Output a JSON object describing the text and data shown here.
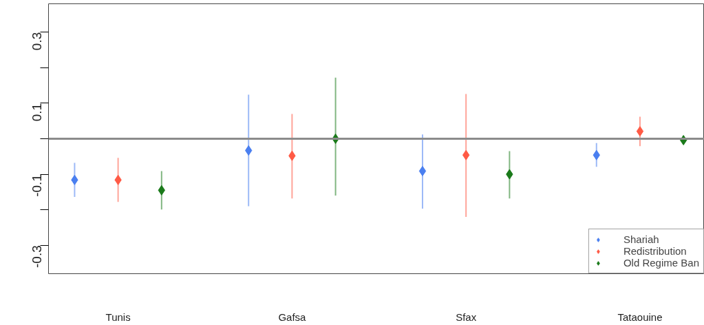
{
  "chart_data": {
    "type": "scatter",
    "categories": [
      "Tunis",
      "Gafsa",
      "Sfax",
      "Tataouine"
    ],
    "series": [
      {
        "name": "Shariah",
        "color": "#4a7ff0",
        "values": [
          -0.116,
          -0.033,
          -0.091,
          -0.046
        ],
        "errors": [
          [
            -0.164,
            -0.068
          ],
          [
            -0.19,
            0.124
          ],
          [
            -0.197,
            0.012
          ],
          [
            -0.079,
            -0.012
          ]
        ]
      },
      {
        "name": "Redistribution",
        "color": "#ff5a45",
        "values": [
          -0.116,
          -0.048,
          -0.046,
          0.021
        ],
        "errors": [
          [
            -0.178,
            -0.054
          ],
          [
            -0.168,
            0.07
          ],
          [
            -0.22,
            0.126
          ],
          [
            -0.021,
            0.062
          ]
        ]
      },
      {
        "name": "Old Regime Ban",
        "color": "#1a7a1a",
        "values": [
          -0.145,
          0.0,
          -0.1,
          -0.004
        ],
        "errors": [
          [
            -0.199,
            -0.091
          ],
          [
            -0.16,
            0.172
          ],
          [
            -0.168,
            -0.035
          ],
          null
        ]
      }
    ],
    "ylim": [
      -0.38,
      0.38
    ],
    "yticks": [
      -0.3,
      {
        "value": -0.2,
        "label": null
      },
      -0.1,
      {
        "value": 0,
        "label": null
      },
      0.1,
      {
        "value": 0.2,
        "label": null
      },
      0.3
    ],
    "ref_lines": [
      {
        "axis": "y",
        "value": 0,
        "label": null,
        "color": "#8c8c8c"
      }
    ],
    "marker": "diamond",
    "grid": false,
    "legend": "bottom right"
  }
}
